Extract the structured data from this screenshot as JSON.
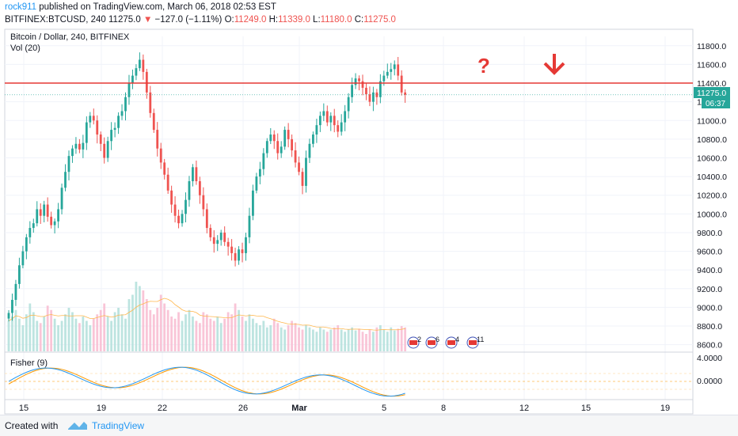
{
  "header": {
    "author": "rock911",
    "published": " published on TradingView.com, March 06, 2018 02:53 EST",
    "symbol": "BITFINEX:BTCUSD, 240",
    "price": "11275.0",
    "arrow": "▼",
    "change": "−127.0 (−1.11%)",
    "o_label": "O:",
    "o_val": "11249.0",
    "h_label": "H:",
    "h_val": "11339.0",
    "l_label": "L:",
    "l_val": "11180.0",
    "c_label": "C:",
    "c_val": "11275.0"
  },
  "chart": {
    "title": "Bitcoin / Dollar, 240, BITFINEX",
    "vol_label": "Vol (20)",
    "fisher_label": "Fisher (9)",
    "current_price": "11275.0",
    "countdown": "06:37",
    "question_mark": "?",
    "down_arrow": "↓"
  },
  "chart_data": {
    "type": "candlestick",
    "y_ticks": [
      "11800.0",
      "11600.0",
      "11400.0",
      "11200.0",
      "11000.0",
      "10800.0",
      "10600.0",
      "10400.0",
      "10200.0",
      "10000.0",
      "9800.0",
      "9600.0",
      "9400.0",
      "9200.0",
      "9000.0",
      "8800.0",
      "8600.0"
    ],
    "ylim": [
      8580,
      11900
    ],
    "resistance_level": 11400,
    "x_ticks": [
      "15",
      "19",
      "22",
      "26",
      "Mar",
      "5",
      "8",
      "12",
      "15",
      "19"
    ],
    "fisher_ticks": [
      "4.0000",
      "0.0000"
    ],
    "event_badges": [
      "2",
      "6",
      "4",
      "11"
    ],
    "colors": {
      "up": "#26a69a",
      "down": "#ef5350",
      "resistance": "#e53935",
      "fisher1": "#2196f3",
      "fisher2": "#ff9800"
    },
    "closes": [
      8940,
      9080,
      9250,
      9450,
      9600,
      9750,
      9850,
      9900,
      10050,
      9980,
      10100,
      9970,
      9880,
      9920,
      10050,
      10280,
      10450,
      10620,
      10700,
      10750,
      10690,
      10760,
      10980,
      11050,
      11000,
      10850,
      10750,
      10600,
      10780,
      10900,
      10920,
      11050,
      11100,
      11250,
      11400,
      11480,
      11560,
      11650,
      11520,
      11300,
      11080,
      10900,
      10700,
      10550,
      10420,
      10250,
      10100,
      9980,
      9900,
      10000,
      10150,
      10350,
      10500,
      10350,
      10200,
      10050,
      9850,
      9750,
      9680,
      9720,
      9800,
      9700,
      9650,
      9580,
      9500,
      9620,
      9580,
      9750,
      9980,
      10250,
      10400,
      10480,
      10650,
      10780,
      10850,
      10780,
      10650,
      10720,
      10900,
      10800,
      10680,
      10550,
      10450,
      10300,
      10600,
      10750,
      10850,
      10950,
      11050,
      11100,
      10980,
      11050,
      10950,
      10880,
      10980,
      11100,
      11250,
      11380,
      11450,
      11420,
      11350,
      11280,
      11200,
      11300,
      11250,
      11420,
      11480,
      11520,
      11550,
      11600,
      11480,
      11300,
      11275
    ],
    "volumes": [
      70,
      80,
      95,
      75,
      60,
      85,
      110,
      90,
      70,
      65,
      80,
      105,
      95,
      75,
      60,
      70,
      85,
      100,
      90,
      75,
      65,
      80,
      70,
      60,
      75,
      85,
      95,
      110,
      80,
      70,
      90,
      100,
      85,
      75,
      120,
      130,
      160,
      150,
      140,
      120,
      95,
      85,
      100,
      130,
      110,
      95,
      80,
      75,
      90,
      70,
      85,
      95,
      80,
      70,
      65,
      90,
      85,
      75,
      70,
      80,
      65,
      75,
      90,
      85,
      110,
      95,
      80,
      70,
      85,
      75,
      65,
      60,
      70,
      55,
      60,
      75,
      65,
      55,
      50,
      60,
      70,
      65,
      55,
      50,
      60,
      55,
      50,
      45,
      55,
      50,
      45,
      50,
      55,
      60,
      50,
      45,
      50,
      55,
      48,
      52,
      45,
      40,
      50,
      45,
      55,
      60,
      50,
      45,
      55,
      48,
      52,
      58,
      55
    ]
  }
}
